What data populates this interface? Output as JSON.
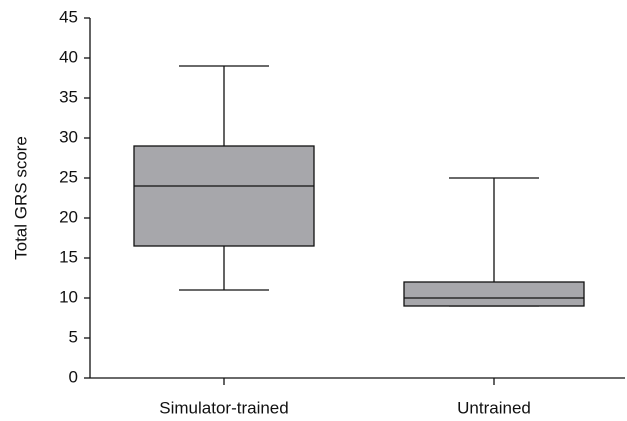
{
  "chart_data": {
    "type": "box",
    "y_label": "Total GRS score",
    "categories": [
      "Simulator-trained",
      "Untrained"
    ],
    "values": [
      {
        "min": 11,
        "q1": 16.5,
        "median": 24,
        "q3": 29,
        "max": 39
      },
      {
        "min": 9,
        "q1": 9,
        "median": 10,
        "q3": 12,
        "max": 25
      }
    ],
    "color": "#a7a7ab",
    "ylim": [
      0,
      45
    ],
    "yticks": [
      0,
      5,
      10,
      15,
      20,
      25,
      30,
      35,
      40,
      45
    ],
    "grid": false
  }
}
